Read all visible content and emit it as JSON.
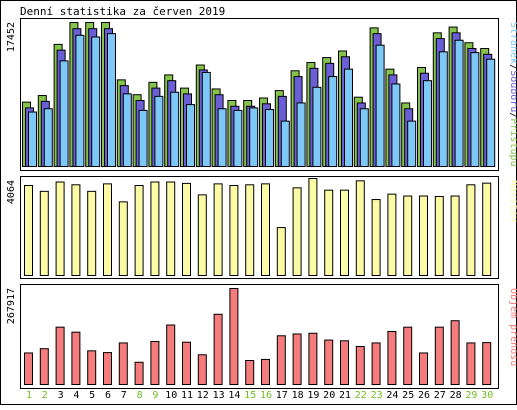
{
  "title": "Denní statistika za červen 2019",
  "colors": {
    "background": "#ffffff",
    "border": "#000000",
    "hits": "#86c34a",
    "files": "#6a5fd6",
    "pages": "#7ec8f8",
    "visits": "#fbfba6",
    "kbytes": "#f47c7c",
    "weekend_label": "#6fbf20",
    "weekday_label": "#000000"
  },
  "chart_data": [
    {
      "type": "bar",
      "name": "traffic",
      "ytick_label": "17452",
      "ylim": [
        0,
        17452
      ],
      "legend": [
        {
          "text": "Stránek",
          "color_key": "pages"
        },
        {
          "text": "/",
          "color_key": "border"
        },
        {
          "text": "Souborů",
          "color_key": "files"
        },
        {
          "text": "/",
          "color_key": "border"
        },
        {
          "text": "Přístupů",
          "color_key": "hits"
        }
      ],
      "categories": [
        "1",
        "2",
        "3",
        "4",
        "5",
        "6",
        "7",
        "8",
        "9",
        "10",
        "11",
        "12",
        "13",
        "14",
        "15",
        "16",
        "17",
        "18",
        "19",
        "20",
        "21",
        "22",
        "23",
        "24",
        "25",
        "26",
        "27",
        "28",
        "29",
        "30"
      ],
      "weekend": [
        "1",
        "2",
        "8",
        "9",
        "15",
        "16",
        "22",
        "23",
        "29",
        "30"
      ],
      "series": [
        {
          "name": "Přístupů",
          "color_key": "hits",
          "values": [
            7800,
            8600,
            14800,
            17450,
            17450,
            17450,
            10500,
            8700,
            10200,
            11100,
            9500,
            12300,
            9400,
            8000,
            8000,
            8300,
            9200,
            11600,
            12600,
            13200,
            14000,
            8400,
            16800,
            11800,
            7700,
            12000,
            16200,
            16900,
            15000,
            14300
          ]
        },
        {
          "name": "Souborů",
          "color_key": "files",
          "values": [
            7100,
            7900,
            14100,
            16700,
            16700,
            16700,
            9800,
            8000,
            9500,
            10400,
            8800,
            11700,
            8700,
            7300,
            7300,
            7600,
            8500,
            10900,
            11900,
            12500,
            13300,
            7700,
            16100,
            11100,
            7000,
            11300,
            15500,
            16200,
            14300,
            13600
          ]
        },
        {
          "name": "Stránek",
          "color_key": "pages",
          "values": [
            6600,
            7000,
            12800,
            15900,
            15700,
            16100,
            8800,
            6800,
            8500,
            9000,
            7500,
            11400,
            7000,
            6800,
            7100,
            6900,
            5500,
            7700,
            9600,
            10900,
            11800,
            7000,
            14700,
            10000,
            5500,
            10400,
            13900,
            15300,
            13800,
            13000
          ]
        }
      ]
    },
    {
      "type": "bar",
      "name": "visits",
      "ytick_label": "4064",
      "ylim": [
        0,
        4064
      ],
      "legend": [
        {
          "text": "Návštěv",
          "color_key": "visits"
        }
      ],
      "categories": [
        "1",
        "2",
        "3",
        "4",
        "5",
        "6",
        "7",
        "8",
        "9",
        "10",
        "11",
        "12",
        "13",
        "14",
        "15",
        "16",
        "17",
        "18",
        "19",
        "20",
        "21",
        "22",
        "23",
        "24",
        "25",
        "26",
        "27",
        "28",
        "29",
        "30"
      ],
      "series": [
        {
          "name": "Návštěv",
          "color_key": "visits",
          "values": [
            3850,
            3600,
            4000,
            3880,
            3600,
            3920,
            3150,
            3850,
            4000,
            4000,
            3940,
            3450,
            3920,
            3850,
            3880,
            3920,
            2050,
            3750,
            4150,
            3650,
            3650,
            4050,
            3250,
            3480,
            3400,
            3400,
            3380,
            3400,
            3880,
            3950
          ]
        }
      ]
    },
    {
      "type": "bar",
      "name": "kbytes",
      "ytick_label": "267917",
      "ylim": [
        0,
        267917
      ],
      "legend": [
        {
          "text": "Objem přenosu",
          "color_key": "kbytes"
        }
      ],
      "categories": [
        "1",
        "2",
        "3",
        "4",
        "5",
        "6",
        "7",
        "8",
        "9",
        "10",
        "11",
        "12",
        "13",
        "14",
        "15",
        "16",
        "17",
        "18",
        "19",
        "20",
        "21",
        "22",
        "23",
        "24",
        "25",
        "26",
        "27",
        "28",
        "29",
        "30"
      ],
      "series": [
        {
          "name": "Objem přenosu",
          "color_key": "kbytes",
          "values": [
            88000,
            100000,
            160000,
            146000,
            94000,
            89000,
            116000,
            62000,
            120000,
            166000,
            118000,
            83000,
            196000,
            267900,
            67000,
            70000,
            136000,
            141000,
            143000,
            124000,
            122000,
            106000,
            116000,
            148000,
            160000,
            88000,
            160000,
            178000,
            116000,
            117000
          ]
        }
      ]
    }
  ]
}
